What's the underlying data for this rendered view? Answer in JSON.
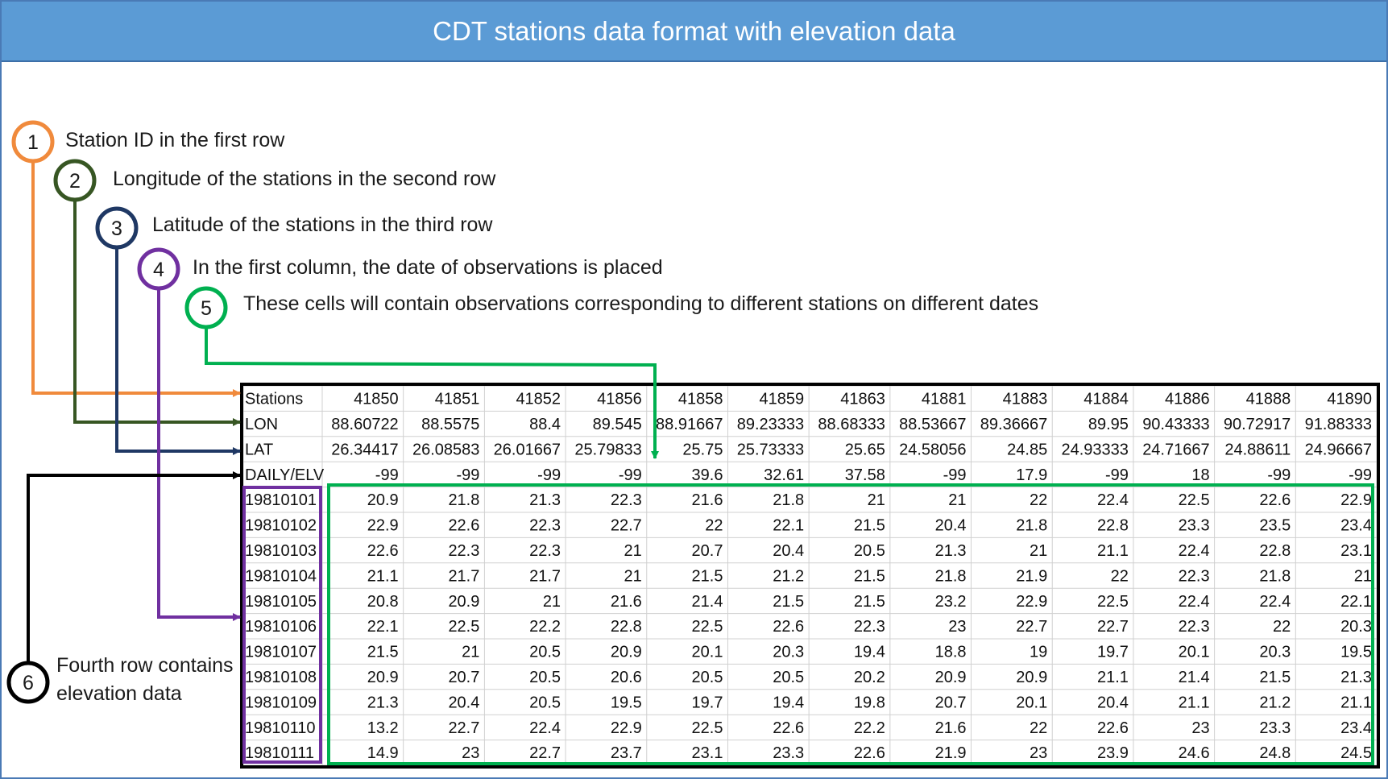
{
  "title": "CDT stations data format with elevation data",
  "colors": {
    "step1": "#f08a3c",
    "step2": "#375623",
    "step3": "#1f3864",
    "step4": "#7030a0",
    "step5": "#00b050",
    "step6": "#000000",
    "title_bg": "#5b9bd5"
  },
  "steps": [
    {
      "number": "1",
      "text": "Station ID in the first row"
    },
    {
      "number": "2",
      "text": "Longitude of the stations in the second row"
    },
    {
      "number": "3",
      "text": "Latitude of the stations in the third row"
    },
    {
      "number": "4",
      "text": "In the first column, the date of observations is placed"
    },
    {
      "number": "5",
      "text": "These cells will contain observations corresponding to different stations on different dates"
    },
    {
      "number": "6",
      "lines": [
        "Fourth row contains",
        "elevation data"
      ]
    }
  ],
  "table": {
    "rows": [
      [
        "Stations",
        "41850",
        "41851",
        "41852",
        "41856",
        "41858",
        "41859",
        "41863",
        "41881",
        "41883",
        "41884",
        "41886",
        "41888",
        "41890"
      ],
      [
        "LON",
        "88.60722",
        "88.5575",
        "88.4",
        "89.545",
        "88.91667",
        "89.23333",
        "88.68333",
        "88.53667",
        "89.36667",
        "89.95",
        "90.43333",
        "90.72917",
        "91.88333"
      ],
      [
        "LAT",
        "26.34417",
        "26.08583",
        "26.01667",
        "25.79833",
        "25.75",
        "25.73333",
        "25.65",
        "24.58056",
        "24.85",
        "24.93333",
        "24.71667",
        "24.88611",
        "24.96667"
      ],
      [
        "DAILY/ELV",
        "-99",
        "-99",
        "-99",
        "-99",
        "39.6",
        "32.61",
        "37.58",
        "-99",
        "17.9",
        "-99",
        "18",
        "-99",
        "-99"
      ],
      [
        "19810101",
        "20.9",
        "21.8",
        "21.3",
        "22.3",
        "21.6",
        "21.8",
        "21",
        "21",
        "22",
        "22.4",
        "22.5",
        "22.6",
        "22.9"
      ],
      [
        "19810102",
        "22.9",
        "22.6",
        "22.3",
        "22.7",
        "22",
        "22.1",
        "21.5",
        "20.4",
        "21.8",
        "22.8",
        "23.3",
        "23.5",
        "23.4"
      ],
      [
        "19810103",
        "22.6",
        "22.3",
        "22.3",
        "21",
        "20.7",
        "20.4",
        "20.5",
        "21.3",
        "21",
        "21.1",
        "22.4",
        "22.8",
        "23.1"
      ],
      [
        "19810104",
        "21.1",
        "21.7",
        "21.7",
        "21",
        "21.5",
        "21.2",
        "21.5",
        "21.8",
        "21.9",
        "22",
        "22.3",
        "21.8",
        "21"
      ],
      [
        "19810105",
        "20.8",
        "20.9",
        "21",
        "21.6",
        "21.4",
        "21.5",
        "21.5",
        "23.2",
        "22.9",
        "22.5",
        "22.4",
        "22.4",
        "22.1"
      ],
      [
        "19810106",
        "22.1",
        "22.5",
        "22.2",
        "22.8",
        "22.5",
        "22.6",
        "22.3",
        "23",
        "22.7",
        "22.7",
        "22.3",
        "22",
        "20.3"
      ],
      [
        "19810107",
        "21.5",
        "21",
        "20.5",
        "20.9",
        "20.1",
        "20.3",
        "19.4",
        "18.8",
        "19",
        "19.7",
        "20.1",
        "20.3",
        "19.5"
      ],
      [
        "19810108",
        "20.9",
        "20.7",
        "20.5",
        "20.6",
        "20.5",
        "20.5",
        "20.2",
        "20.9",
        "20.9",
        "21.1",
        "21.4",
        "21.5",
        "21.3"
      ],
      [
        "19810109",
        "21.3",
        "20.4",
        "20.5",
        "19.5",
        "19.7",
        "19.4",
        "19.8",
        "20.7",
        "20.1",
        "20.4",
        "21.1",
        "21.2",
        "21.1"
      ],
      [
        "19810110",
        "13.2",
        "22.7",
        "22.4",
        "22.9",
        "22.5",
        "22.6",
        "22.2",
        "21.6",
        "22",
        "22.6",
        "23",
        "23.3",
        "23.4"
      ],
      [
        "19810111",
        "14.9",
        "23",
        "22.7",
        "23.7",
        "23.1",
        "23.3",
        "22.6",
        "21.9",
        "23",
        "23.9",
        "24.6",
        "24.8",
        "24.5"
      ]
    ]
  }
}
